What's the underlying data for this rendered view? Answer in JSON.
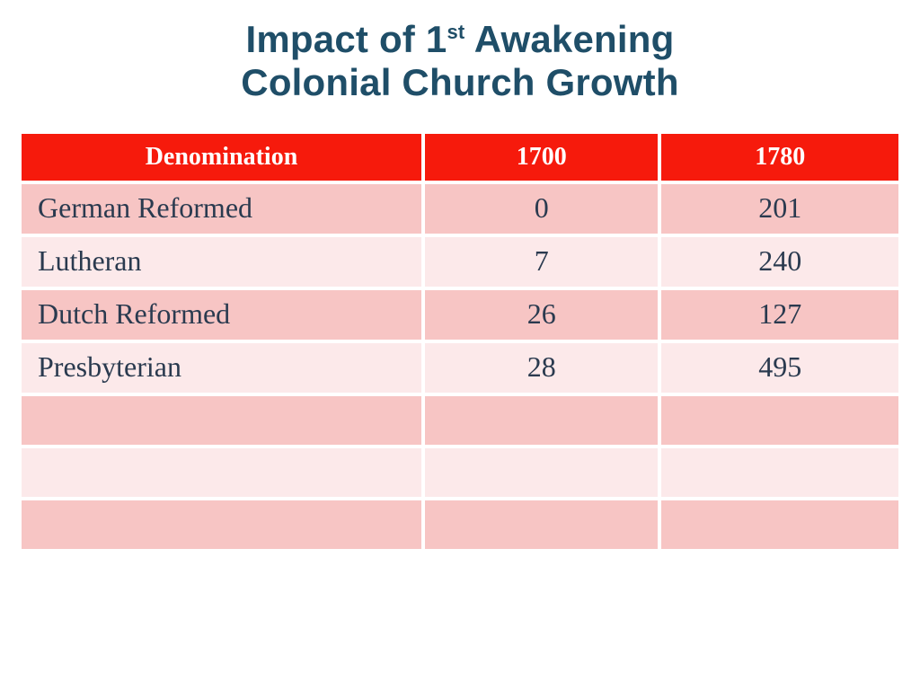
{
  "title": {
    "line1_pre": "Impact of 1",
    "sup": "st",
    "line1_post": " Awakening",
    "line2": "Colonial Church Growth"
  },
  "table": {
    "type": "table",
    "columns": [
      "Denomination",
      "1700",
      "1780"
    ],
    "rows": [
      [
        "German Reformed",
        "0",
        "201"
      ],
      [
        "Lutheran",
        "7",
        "240"
      ],
      [
        "Dutch Reformed",
        "26",
        "127"
      ],
      [
        "Presbyterian",
        "28",
        "495"
      ],
      [
        "",
        "",
        ""
      ],
      [
        "",
        "",
        ""
      ],
      [
        "",
        "",
        ""
      ]
    ],
    "header_bg": "#f61a0c",
    "header_fg": "#ffffff",
    "row_odd_bg": "#f7c5c4",
    "row_even_bg": "#fce9ea",
    "cell_fg": "#2a3a4f",
    "cell_border": "#ffffff",
    "col_widths_pct": [
      46,
      27,
      27
    ],
    "header_fontsize_pt": 21,
    "cell_fontsize_pt": 24,
    "col_align": [
      "left",
      "center",
      "center"
    ]
  },
  "colors": {
    "title_color": "#1f4e68",
    "background": "#ffffff"
  },
  "typography": {
    "title_font": "Arial",
    "title_fontsize_pt": 32,
    "title_weight": 600,
    "body_font": "Georgia"
  }
}
